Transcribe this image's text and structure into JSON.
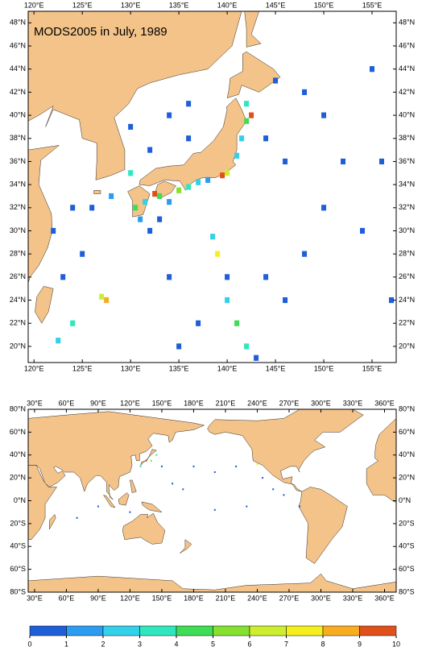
{
  "maps": [
    {
      "title": "MODS2005 in July, 1989",
      "xlim": [
        119.4,
        157.5
      ],
      "ylim": [
        18.6,
        49
      ],
      "xticks": [
        {
          "value": 120,
          "label": "120°E"
        },
        {
          "value": 125,
          "label": "125°E"
        },
        {
          "value": 130,
          "label": "130°E"
        },
        {
          "value": 135,
          "label": "135°E"
        },
        {
          "value": 140,
          "label": "140°E"
        },
        {
          "value": 145,
          "label": "145°E"
        },
        {
          "value": 150,
          "label": "150°E"
        },
        {
          "value": 155,
          "label": "155°E"
        }
      ],
      "yticks": [
        {
          "value": 20,
          "label": "20°N"
        },
        {
          "value": 22,
          "label": "22°N"
        },
        {
          "value": 24,
          "label": "24°N"
        },
        {
          "value": 26,
          "label": "26°N"
        },
        {
          "value": 28,
          "label": "28°N"
        },
        {
          "value": 30,
          "label": "30°N"
        },
        {
          "value": 32,
          "label": "32°N"
        },
        {
          "value": 34,
          "label": "34°N"
        },
        {
          "value": 36,
          "label": "36°N"
        },
        {
          "value": 38,
          "label": "38°N"
        },
        {
          "value": 40,
          "label": "40°N"
        },
        {
          "value": 42,
          "label": "42°N"
        },
        {
          "value": 44,
          "label": "44°N"
        },
        {
          "value": 46,
          "label": "46°N"
        },
        {
          "value": 48,
          "label": "48°N"
        }
      ],
      "cells": [
        {
          "lon": 135,
          "lat": 33.5,
          "value": 5
        },
        {
          "lon": 136,
          "lat": 33.8,
          "value": 3
        },
        {
          "lon": 137,
          "lat": 34.2,
          "value": 2
        },
        {
          "lon": 138,
          "lat": 34.4,
          "value": 1.5
        },
        {
          "lon": 139.5,
          "lat": 34.8,
          "value": 9
        },
        {
          "lon": 140,
          "lat": 35,
          "value": 6
        },
        {
          "lon": 141,
          "lat": 36.5,
          "value": 2
        },
        {
          "lon": 141.5,
          "lat": 38,
          "value": 2.5
        },
        {
          "lon": 142,
          "lat": 39.5,
          "value": 4
        },
        {
          "lon": 142.5,
          "lat": 40,
          "value": 9
        },
        {
          "lon": 142,
          "lat": 41,
          "value": 3
        },
        {
          "lon": 133,
          "lat": 33,
          "value": 4
        },
        {
          "lon": 132.5,
          "lat": 33.2,
          "value": 9
        },
        {
          "lon": 131.5,
          "lat": 32.5,
          "value": 2
        },
        {
          "lon": 130.5,
          "lat": 32,
          "value": 4
        },
        {
          "lon": 131,
          "lat": 31,
          "value": 1
        },
        {
          "lon": 134,
          "lat": 32.5,
          "value": 1.5
        },
        {
          "lon": 132,
          "lat": 30,
          "value": 0.5
        },
        {
          "lon": 133,
          "lat": 31,
          "value": 0.5
        },
        {
          "lon": 127.5,
          "lat": 24,
          "value": 8
        },
        {
          "lon": 127,
          "lat": 24.3,
          "value": 6
        },
        {
          "lon": 124,
          "lat": 22,
          "value": 3
        },
        {
          "lon": 122.5,
          "lat": 20.5,
          "value": 2
        },
        {
          "lon": 137,
          "lat": 22,
          "value": 0.5
        },
        {
          "lon": 140,
          "lat": 24,
          "value": 2
        },
        {
          "lon": 141,
          "lat": 22,
          "value": 4
        },
        {
          "lon": 142,
          "lat": 20,
          "value": 3
        },
        {
          "lon": 143,
          "lat": 19,
          "value": 0.5
        },
        {
          "lon": 139,
          "lat": 28,
          "value": 7
        },
        {
          "lon": 138.5,
          "lat": 29.5,
          "value": 2
        },
        {
          "lon": 140,
          "lat": 26,
          "value": 0.5
        },
        {
          "lon": 144,
          "lat": 26,
          "value": 0.5
        },
        {
          "lon": 146,
          "lat": 24,
          "value": 0.5
        },
        {
          "lon": 148,
          "lat": 28,
          "value": 0.5
        },
        {
          "lon": 150,
          "lat": 32,
          "value": 0.5
        },
        {
          "lon": 152,
          "lat": 36,
          "value": 0.5
        },
        {
          "lon": 150,
          "lat": 40,
          "value": 0.5
        },
        {
          "lon": 148,
          "lat": 42,
          "value": 0.5
        },
        {
          "lon": 145,
          "lat": 43,
          "value": 0.5
        },
        {
          "lon": 144,
          "lat": 38,
          "value": 0.5
        },
        {
          "lon": 146,
          "lat": 36,
          "value": 0.5
        },
        {
          "lon": 136,
          "lat": 38,
          "value": 0.5
        },
        {
          "lon": 134,
          "lat": 40,
          "value": 0.5
        },
        {
          "lon": 132,
          "lat": 37,
          "value": 0.5
        },
        {
          "lon": 130,
          "lat": 39,
          "value": 0.5
        },
        {
          "lon": 136,
          "lat": 41,
          "value": 0.5
        },
        {
          "lon": 130,
          "lat": 35,
          "value": 3
        },
        {
          "lon": 128,
          "lat": 33,
          "value": 1
        },
        {
          "lon": 126,
          "lat": 32,
          "value": 0.5
        },
        {
          "lon": 124,
          "lat": 32,
          "value": 0.5
        },
        {
          "lon": 122,
          "lat": 30,
          "value": 0.5
        },
        {
          "lon": 125,
          "lat": 28,
          "value": 0.5
        },
        {
          "lon": 123,
          "lat": 26,
          "value": 0.5
        },
        {
          "lon": 134,
          "lat": 26,
          "value": 0.5
        },
        {
          "lon": 135,
          "lat": 20,
          "value": 0.5
        },
        {
          "lon": 155,
          "lat": 44,
          "value": 0.5
        },
        {
          "lon": 157,
          "lat": 24,
          "value": 0.5
        },
        {
          "lon": 156,
          "lat": 36,
          "value": 0.5
        },
        {
          "lon": 154,
          "lat": 30,
          "value": 0.5
        }
      ]
    },
    {
      "xlim": [
        24,
        371
      ],
      "ylim": [
        -80,
        80
      ],
      "xticks": [
        {
          "value": 30,
          "label": "30°E"
        },
        {
          "value": 60,
          "label": "60°E"
        },
        {
          "value": 90,
          "label": "90°E"
        },
        {
          "value": 120,
          "label": "120°E"
        },
        {
          "value": 150,
          "label": "150°E"
        },
        {
          "value": 180,
          "label": "180°E"
        },
        {
          "value": 210,
          "label": "210°E"
        },
        {
          "value": 240,
          "label": "240°E"
        },
        {
          "value": 270,
          "label": "270°E"
        },
        {
          "value": 300,
          "label": "300°E"
        },
        {
          "value": 330,
          "label": "330°E"
        },
        {
          "value": 360,
          "label": "360°E"
        }
      ],
      "yticks": [
        {
          "value": -80,
          "label": "80°S"
        },
        {
          "value": -60,
          "label": "60°S"
        },
        {
          "value": -40,
          "label": "40°S"
        },
        {
          "value": -20,
          "label": "20°S"
        },
        {
          "value": 0,
          "label": "0°N"
        },
        {
          "value": 20,
          "label": "20°N"
        },
        {
          "value": 40,
          "label": "40°N"
        },
        {
          "value": 60,
          "label": "60°N"
        },
        {
          "value": 80,
          "label": "80°N"
        }
      ],
      "cells": [
        {
          "lon": 130,
          "lat": 30,
          "value": 3
        },
        {
          "lon": 135,
          "lat": 35,
          "value": 9
        },
        {
          "lon": 140,
          "lat": 35,
          "value": 5
        },
        {
          "lon": 145,
          "lat": 40,
          "value": 3
        },
        {
          "lon": 150,
          "lat": 30,
          "value": 0.5
        },
        {
          "lon": 160,
          "lat": 15,
          "value": 0.5
        },
        {
          "lon": 170,
          "lat": 10,
          "value": 0.5
        },
        {
          "lon": 180,
          "lat": 30,
          "value": 0.5
        },
        {
          "lon": 200,
          "lat": 25,
          "value": 0.5
        },
        {
          "lon": 220,
          "lat": 30,
          "value": 0.5
        },
        {
          "lon": 240,
          "lat": 32,
          "value": 7
        },
        {
          "lon": 245,
          "lat": 20,
          "value": 0.5
        },
        {
          "lon": 255,
          "lat": 10,
          "value": 0.5
        },
        {
          "lon": 265,
          "lat": 5,
          "value": 0.5
        },
        {
          "lon": 280,
          "lat": -5,
          "value": 0.5
        },
        {
          "lon": 70,
          "lat": -15,
          "value": 0.5
        },
        {
          "lon": 90,
          "lat": -5,
          "value": 0.5
        },
        {
          "lon": 120,
          "lat": -10,
          "value": 0.5
        },
        {
          "lon": 200,
          "lat": -8,
          "value": 0.5
        },
        {
          "lon": 230,
          "lat": -5,
          "value": 0.5
        }
      ]
    }
  ],
  "colorbar": {
    "ticks": [
      0,
      1,
      2,
      3,
      4,
      5,
      6,
      7,
      8,
      9,
      10
    ],
    "colors": [
      "#1e5ed8",
      "#2b9cf0",
      "#33d0ea",
      "#30e6be",
      "#3fdc55",
      "#86e030",
      "#cdee2e",
      "#f6ef20",
      "#f7ad1f",
      "#e0501a"
    ]
  },
  "land_color": "#f3c38a"
}
